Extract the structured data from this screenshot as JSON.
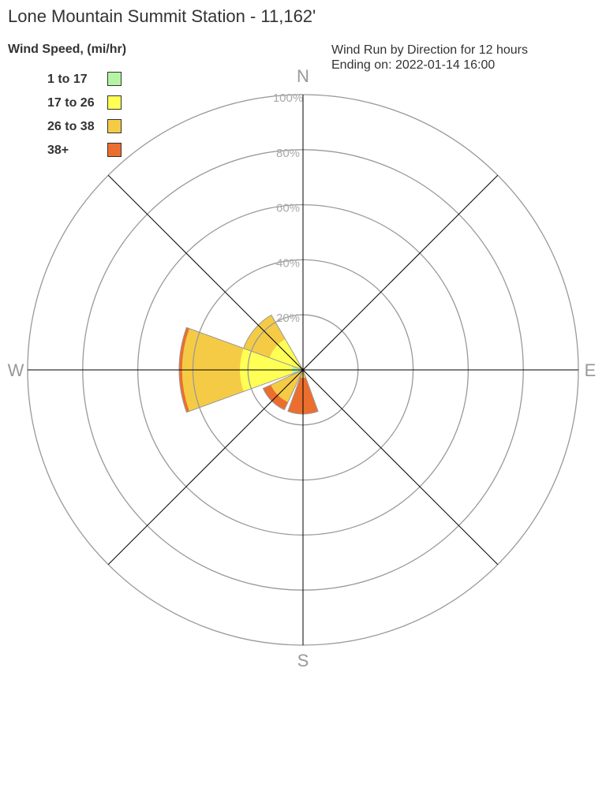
{
  "chart_data": {
    "type": "wind-rose",
    "title": "Lone Mountain Summit Station - 11,162'",
    "legend_title": "Wind Speed, (mi/hr)",
    "info_line1": "Wind Run by Direction for 12 hours",
    "info_line2": "Ending on: 2022-01-14 16:00",
    "compass": {
      "n": "N",
      "e": "E",
      "s": "S",
      "w": "W"
    },
    "radial_ticks": [
      "20%",
      "40%",
      "60%",
      "80%",
      "100%"
    ],
    "radial_max": 100,
    "bins": [
      {
        "label": "1 to 17",
        "color": "#b3f5a5"
      },
      {
        "label": "17 to 26",
        "color": "#ffff55"
      },
      {
        "label": "26 to 38",
        "color": "#f5cb45"
      },
      {
        "label": "38+",
        "color": "#ec6e2e"
      }
    ],
    "directions": [
      {
        "dir": "S",
        "bearing": 180,
        "values": [
          0,
          1,
          2,
          13
        ]
      },
      {
        "dir": "SW",
        "bearing": 225,
        "values": [
          0,
          0,
          13,
          3
        ]
      },
      {
        "dir": "W",
        "bearing": 270,
        "values": [
          4,
          19,
          21,
          1
        ]
      },
      {
        "dir": "NW",
        "bearing": 310,
        "values": [
          0,
          13,
          10,
          0
        ]
      }
    ]
  }
}
